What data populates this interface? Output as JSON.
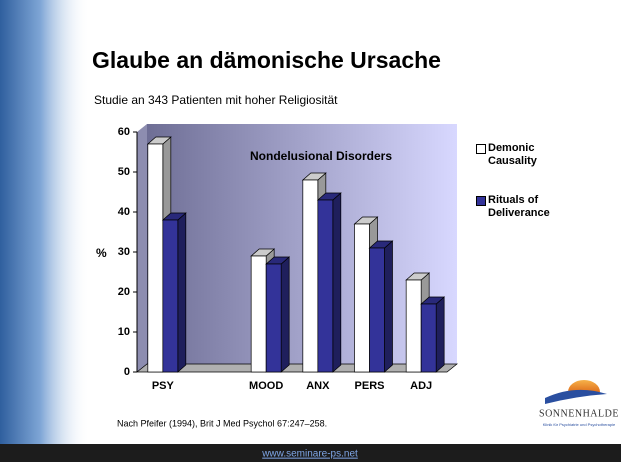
{
  "chart_data": {
    "type": "bar3d",
    "title": "Glaube an dämonische Ursache",
    "subtitle": "Studie an 343 Patienten mit hoher Religiosität",
    "annotation": "Nondelusional Disorders",
    "y_label": "%",
    "categories": [
      "PSY",
      null,
      "MOOD",
      "ANX",
      "PERS",
      "ADJ"
    ],
    "series": [
      {
        "name": "Demonic Causality",
        "color": "#ffffff",
        "values": [
          57,
          null,
          29,
          48,
          37,
          23
        ]
      },
      {
        "name": "Rituals of Deliverance",
        "color": "#333399",
        "values": [
          38,
          null,
          27,
          43,
          31,
          17
        ]
      }
    ],
    "ylim": [
      0,
      60
    ],
    "yticks": [
      0,
      10,
      20,
      30,
      40,
      50,
      60
    ],
    "source": "Nach Pfeifer (1994), Brit J Med Psychol 67:247–258.",
    "footer": "www.seminare-ps.net",
    "logo": {
      "name": "SONNENHALDE",
      "tagline": "Klinik für Psychiatrie und Psychotherapie"
    }
  }
}
